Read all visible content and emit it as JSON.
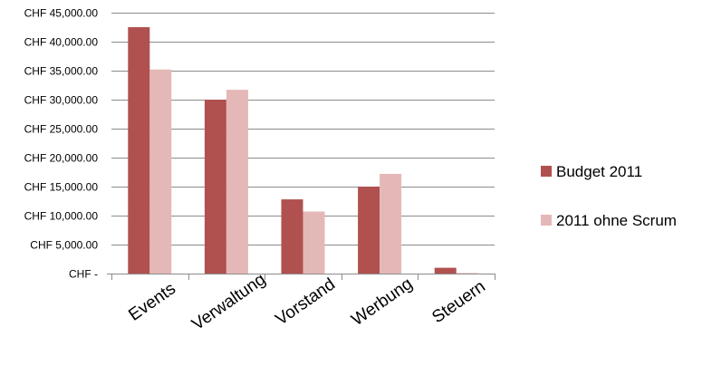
{
  "chart_data": {
    "type": "bar",
    "categories": [
      "Events",
      "Verwaltung",
      "Vorstand",
      "Werbung",
      "Steuern"
    ],
    "series": [
      {
        "name": "Budget 2011",
        "color": "#b0514f",
        "values": [
          42500,
          30000,
          12800,
          15000,
          1000
        ]
      },
      {
        "name": "2011 ohne Scrum",
        "color": "#e4b8b7",
        "values": [
          35200,
          31700,
          10700,
          17200,
          100
        ]
      }
    ],
    "ylim": [
      0,
      45000
    ],
    "yticks": [
      0,
      5000,
      10000,
      15000,
      20000,
      25000,
      30000,
      35000,
      40000,
      45000
    ],
    "ytick_labels": [
      "CHF -",
      "CHF 5,000.00",
      "CHF 10,000.00",
      "CHF 15,000.00",
      "CHF 20,000.00",
      "CHF 25,000.00",
      "CHF 30,000.00",
      "CHF 35,000.00",
      "CHF 40,000.00",
      "CHF 45,000.00"
    ],
    "grid": true,
    "legend_position": "right",
    "title": "",
    "xlabel": "",
    "ylabel": ""
  }
}
